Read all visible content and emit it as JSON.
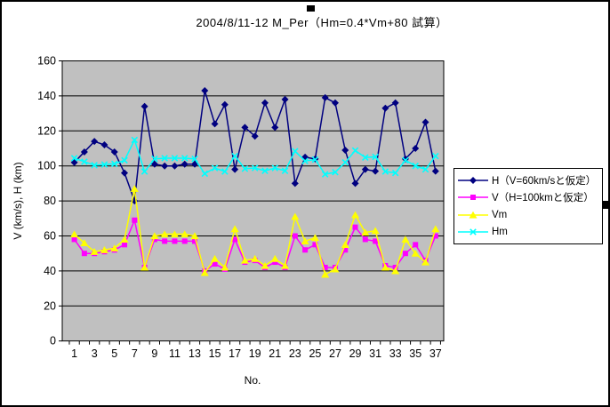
{
  "chart_data": {
    "type": "line",
    "title": "2004/8/11-12 M_Per（Hm=0.4*Vm+80 試算）",
    "xlabel": "No.",
    "ylabel": "V (km/s), H (km)",
    "ylim": [
      0,
      160
    ],
    "y_ticks": [
      0,
      20,
      40,
      60,
      80,
      100,
      120,
      140,
      160
    ],
    "x": [
      1,
      2,
      3,
      4,
      5,
      6,
      7,
      8,
      9,
      10,
      11,
      12,
      13,
      14,
      15,
      16,
      17,
      18,
      19,
      20,
      21,
      22,
      23,
      24,
      25,
      26,
      27,
      28,
      29,
      30,
      31,
      32,
      33,
      34,
      35,
      36,
      37
    ],
    "x_tick_labels": [
      1,
      3,
      5,
      7,
      9,
      11,
      13,
      15,
      17,
      19,
      21,
      23,
      25,
      27,
      29,
      31,
      33,
      35,
      37
    ],
    "grid": true,
    "plot_background": "#c0c0c0",
    "legend_position": "right",
    "series": [
      {
        "key": "h",
        "name": "H（V=60km/sと仮定）",
        "color": "#000080",
        "marker": "diamond",
        "values": [
          102,
          108,
          114,
          112,
          108,
          96,
          80,
          134,
          101,
          100,
          100,
          101,
          101,
          143,
          124,
          135,
          98,
          122,
          117,
          136,
          122,
          138,
          90,
          105,
          104,
          139,
          136,
          109,
          90,
          98,
          97,
          133,
          136,
          104,
          110,
          125,
          97
        ]
      },
      {
        "key": "v",
        "name": "V（H=100kmと仮定）",
        "color": "#ff00ff",
        "marker": "square",
        "values": [
          58,
          50,
          50,
          51,
          52,
          55,
          69,
          42,
          58,
          57,
          57,
          57,
          57,
          40,
          44,
          41,
          58,
          45,
          46,
          42,
          45,
          42,
          60,
          52,
          55,
          42,
          42,
          52,
          65,
          58,
          57,
          43,
          42,
          50,
          55,
          46,
          60
        ]
      },
      {
        "key": "vm",
        "name": "Vm",
        "color": "#ffff00",
        "marker": "triangle",
        "values": [
          61,
          56,
          51,
          52,
          53,
          58,
          87,
          42,
          60,
          61,
          61,
          61,
          60,
          39,
          47,
          42,
          64,
          46,
          47,
          43,
          47,
          43,
          71,
          57,
          59,
          38,
          41,
          55,
          72,
          62,
          63,
          42,
          40,
          58,
          50,
          45,
          64
        ]
      },
      {
        "key": "hm",
        "name": "Hm",
        "color": "#00ffff",
        "marker": "x",
        "values": [
          104.4,
          102.4,
          100.4,
          100.8,
          101.2,
          103.2,
          114.8,
          96.8,
          104,
          104.4,
          104.4,
          104.4,
          104,
          95.6,
          98.8,
          96.8,
          105.6,
          98.4,
          98.8,
          97.2,
          98.8,
          97.2,
          108.4,
          102.8,
          103.6,
          95.2,
          96.4,
          102,
          108.8,
          104.8,
          105.2,
          96.8,
          96,
          103.2,
          100,
          98,
          105.6
        ]
      }
    ]
  }
}
